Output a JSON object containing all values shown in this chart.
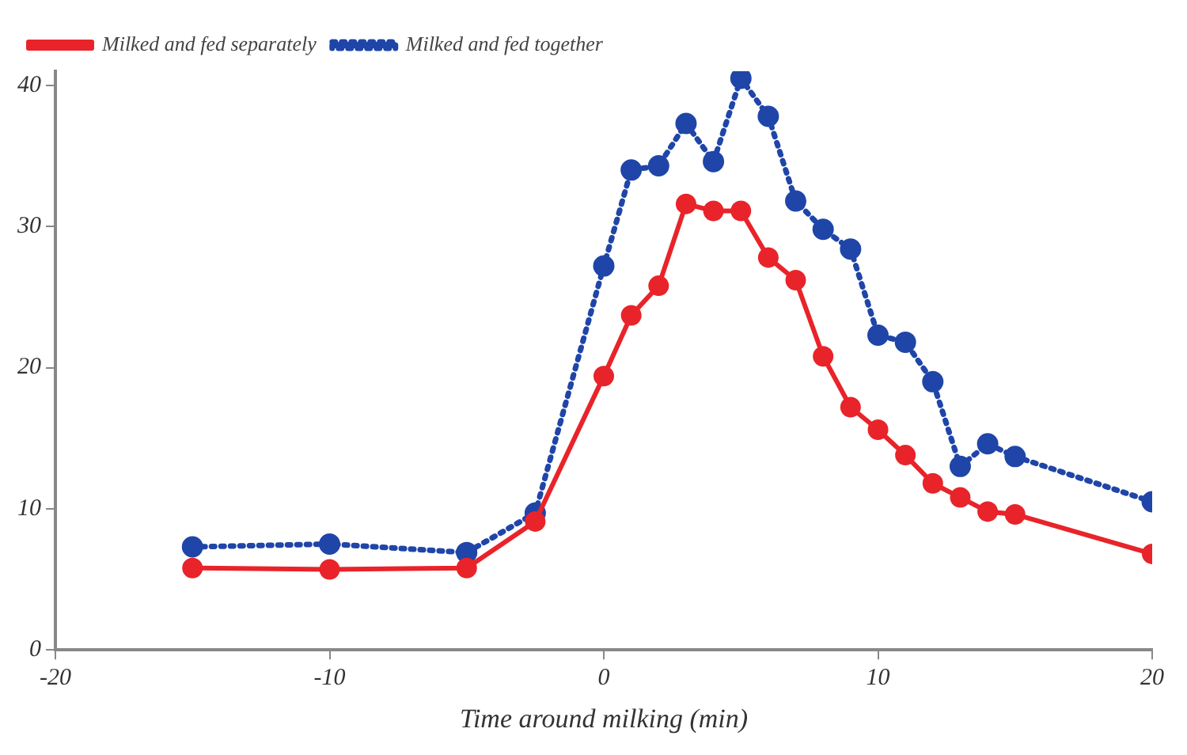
{
  "chart_data": {
    "type": "line",
    "xlabel": "Time around milking (min)",
    "x": [
      -15,
      -10,
      -5,
      -2.5,
      0,
      1,
      2,
      3,
      4,
      5,
      6,
      7,
      8,
      9,
      10,
      11,
      12,
      13,
      14,
      15,
      20
    ],
    "series": [
      {
        "name": "Milked and fed together",
        "color": "#1f45a8",
        "line_style": "dotted",
        "values": [
          7.3,
          7.5,
          6.9,
          9.7,
          27.2,
          34,
          34.3,
          37.3,
          34.6,
          40.5,
          37.8,
          31.8,
          29.8,
          28.4,
          22.3,
          21.8,
          19,
          13,
          14.6,
          13.7,
          10.5
        ]
      },
      {
        "name": "Milked and fed separately",
        "color": "#e8242a",
        "line_style": "solid",
        "values": [
          5.8,
          5.7,
          5.8,
          9.1,
          19.4,
          23.7,
          25.8,
          31.6,
          31.1,
          31.1,
          27.8,
          26.2,
          20.8,
          17.2,
          15.6,
          13.8,
          11.8,
          10.8,
          9.8,
          9.6,
          6.8
        ]
      }
    ],
    "xlim": [
      -20,
      20
    ],
    "xticks": [
      -20,
      -10,
      0,
      10,
      20
    ],
    "ylim": [
      0,
      41
    ],
    "yticks": [
      0,
      10,
      20,
      30,
      40
    ],
    "grid": false,
    "legend": "top left",
    "marker": "circle"
  }
}
